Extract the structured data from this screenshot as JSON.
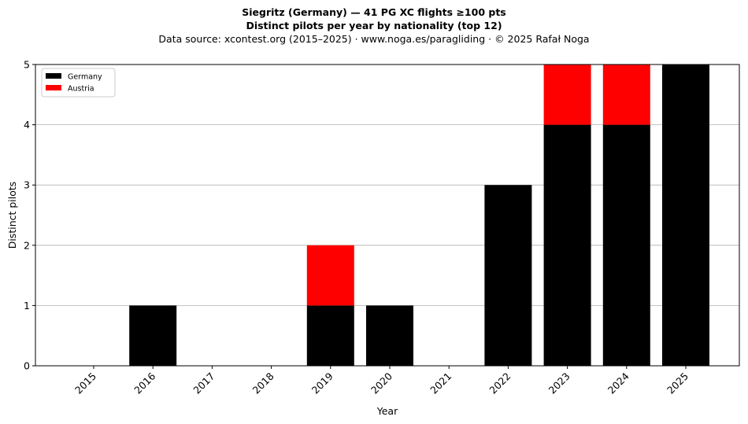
{
  "title": "Siegritz (Germany)  —  41 PG XC flights ≥100 pts",
  "subtitle": "Distinct pilots per year by nationality (top 12)",
  "source": "Data source: xcontest.org (2015–2025)  ·  www.noga.es/paragliding  ·  © 2025 Rafał Noga",
  "chart_data": {
    "type": "bar",
    "stacked": true,
    "xlabel": "Year",
    "ylabel": "Distinct pilots",
    "categories": [
      "2015",
      "2016",
      "2017",
      "2018",
      "2019",
      "2020",
      "2021",
      "2022",
      "2023",
      "2024",
      "2025"
    ],
    "series": [
      {
        "name": "Germany",
        "color": "#000000",
        "values": [
          0,
          1,
          0,
          0,
          1,
          1,
          0,
          3,
          4,
          4,
          5
        ]
      },
      {
        "name": "Austria",
        "color": "#ff0000",
        "values": [
          0,
          0,
          0,
          0,
          1,
          0,
          0,
          0,
          1,
          1,
          0
        ]
      }
    ],
    "ylim": [
      0,
      5
    ],
    "yticks": [
      0,
      1,
      2,
      3,
      4,
      5
    ],
    "grid": "y",
    "legend": "top-left"
  }
}
